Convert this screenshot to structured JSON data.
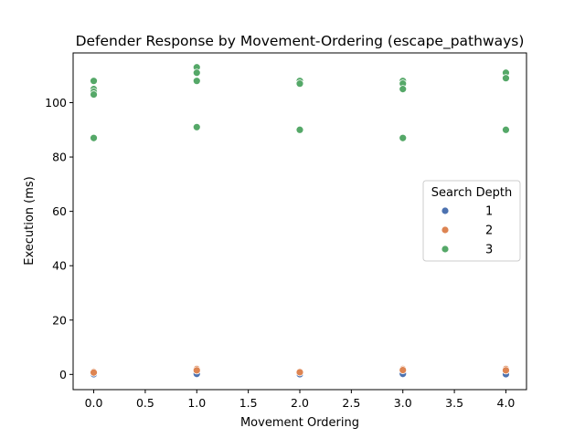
{
  "chart_data": {
    "type": "scatter",
    "title": "Defender Response by Movement-Ordering (escape_pathways)",
    "xlabel": "Movement Ordering",
    "ylabel": "Execution (ms)",
    "xlim": [
      -0.2,
      4.2
    ],
    "ylim": [
      -5.6,
      118.3
    ],
    "x_ticks": [
      0.0,
      0.5,
      1.0,
      1.5,
      2.0,
      2.5,
      3.0,
      3.5,
      4.0
    ],
    "x_tick_labels": [
      "0.0",
      "0.5",
      "1.0",
      "1.5",
      "2.0",
      "2.5",
      "3.0",
      "3.5",
      "4.0"
    ],
    "y_ticks": [
      0,
      20,
      40,
      60,
      80,
      100
    ],
    "y_tick_labels": [
      "0",
      "20",
      "40",
      "60",
      "80",
      "100"
    ],
    "grid": false,
    "legend": {
      "title": "Search Depth",
      "placement": "center-right",
      "entries": [
        "1",
        "2",
        "3"
      ]
    },
    "series": [
      {
        "name": "1",
        "color": "#4c72b0",
        "points": [
          [
            0,
            0.0
          ],
          [
            0,
            0.1
          ],
          [
            1,
            0.0
          ],
          [
            1,
            0.2
          ],
          [
            2,
            0.0
          ],
          [
            2,
            0.1
          ],
          [
            3,
            0.0
          ],
          [
            3,
            0.2
          ],
          [
            4,
            0.0
          ],
          [
            4,
            0.1
          ]
        ]
      },
      {
        "name": "2",
        "color": "#dd8452",
        "points": [
          [
            0,
            1.0
          ],
          [
            0,
            0.7
          ],
          [
            1,
            2.0
          ],
          [
            1,
            1.5
          ],
          [
            2,
            1.0
          ],
          [
            2,
            0.8
          ],
          [
            3,
            2.0
          ],
          [
            3,
            1.6
          ],
          [
            4,
            2.0
          ],
          [
            4,
            1.5
          ]
        ]
      },
      {
        "name": "3",
        "color": "#55a868",
        "points": [
          [
            0,
            108
          ],
          [
            0,
            105
          ],
          [
            0,
            104
          ],
          [
            0,
            103
          ],
          [
            0,
            87
          ],
          [
            1,
            113
          ],
          [
            1,
            111
          ],
          [
            1,
            108
          ],
          [
            1,
            91
          ],
          [
            2,
            108
          ],
          [
            2,
            107
          ],
          [
            2,
            90
          ],
          [
            3,
            108
          ],
          [
            3,
            107
          ],
          [
            3,
            105
          ],
          [
            3,
            87
          ],
          [
            4,
            111
          ],
          [
            4,
            109
          ],
          [
            4,
            90
          ]
        ]
      }
    ]
  }
}
